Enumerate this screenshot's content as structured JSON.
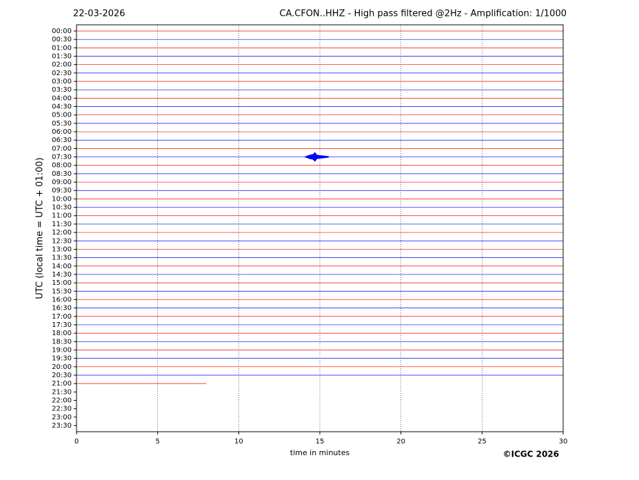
{
  "chart_data": {
    "type": "helicorder",
    "date": "22-03-2026",
    "title": "CA.CFON..HHZ - High pass filtered @2Hz - Amplification: 1/1000",
    "ylabel": "UTC (local time = UTC + 01:00)",
    "xlabel": "time in minutes",
    "credit": "©ICGC 2026",
    "categories": [
      "00:00",
      "00:30",
      "01:00",
      "01:30",
      "02:00",
      "02:30",
      "03:00",
      "03:30",
      "04:00",
      "04:30",
      "05:00",
      "05:30",
      "06:00",
      "06:30",
      "07:00",
      "07:30",
      "08:00",
      "08:30",
      "09:00",
      "09:30",
      "10:00",
      "10:30",
      "11:00",
      "11:30",
      "12:00",
      "12:30",
      "13:00",
      "13:30",
      "14:00",
      "14:30",
      "15:00",
      "15:30",
      "16:00",
      "16:30",
      "17:00",
      "17:30",
      "18:00",
      "18:30",
      "19:00",
      "19:30",
      "20:00",
      "20:30",
      "21:00",
      "21:30",
      "22:00",
      "22:30",
      "23:00",
      "23:30"
    ],
    "values": [
      30,
      30,
      30,
      30,
      30,
      30,
      30,
      30,
      30,
      30,
      30,
      30,
      30,
      30,
      30,
      30,
      30,
      30,
      30,
      30,
      30,
      30,
      30,
      30,
      30,
      30,
      30,
      30,
      30,
      30,
      30,
      30,
      30,
      30,
      30,
      30,
      30,
      30,
      30,
      30,
      30,
      30,
      8,
      null,
      null,
      null,
      null,
      null
    ],
    "colors": [
      "#ff0000",
      "#0000ff"
    ],
    "events": [
      {
        "row": 15,
        "x": 14.7
      }
    ],
    "xlim": [
      0,
      30
    ],
    "xticks": [
      0,
      5,
      10,
      15,
      20,
      25,
      30
    ],
    "grid": true
  }
}
